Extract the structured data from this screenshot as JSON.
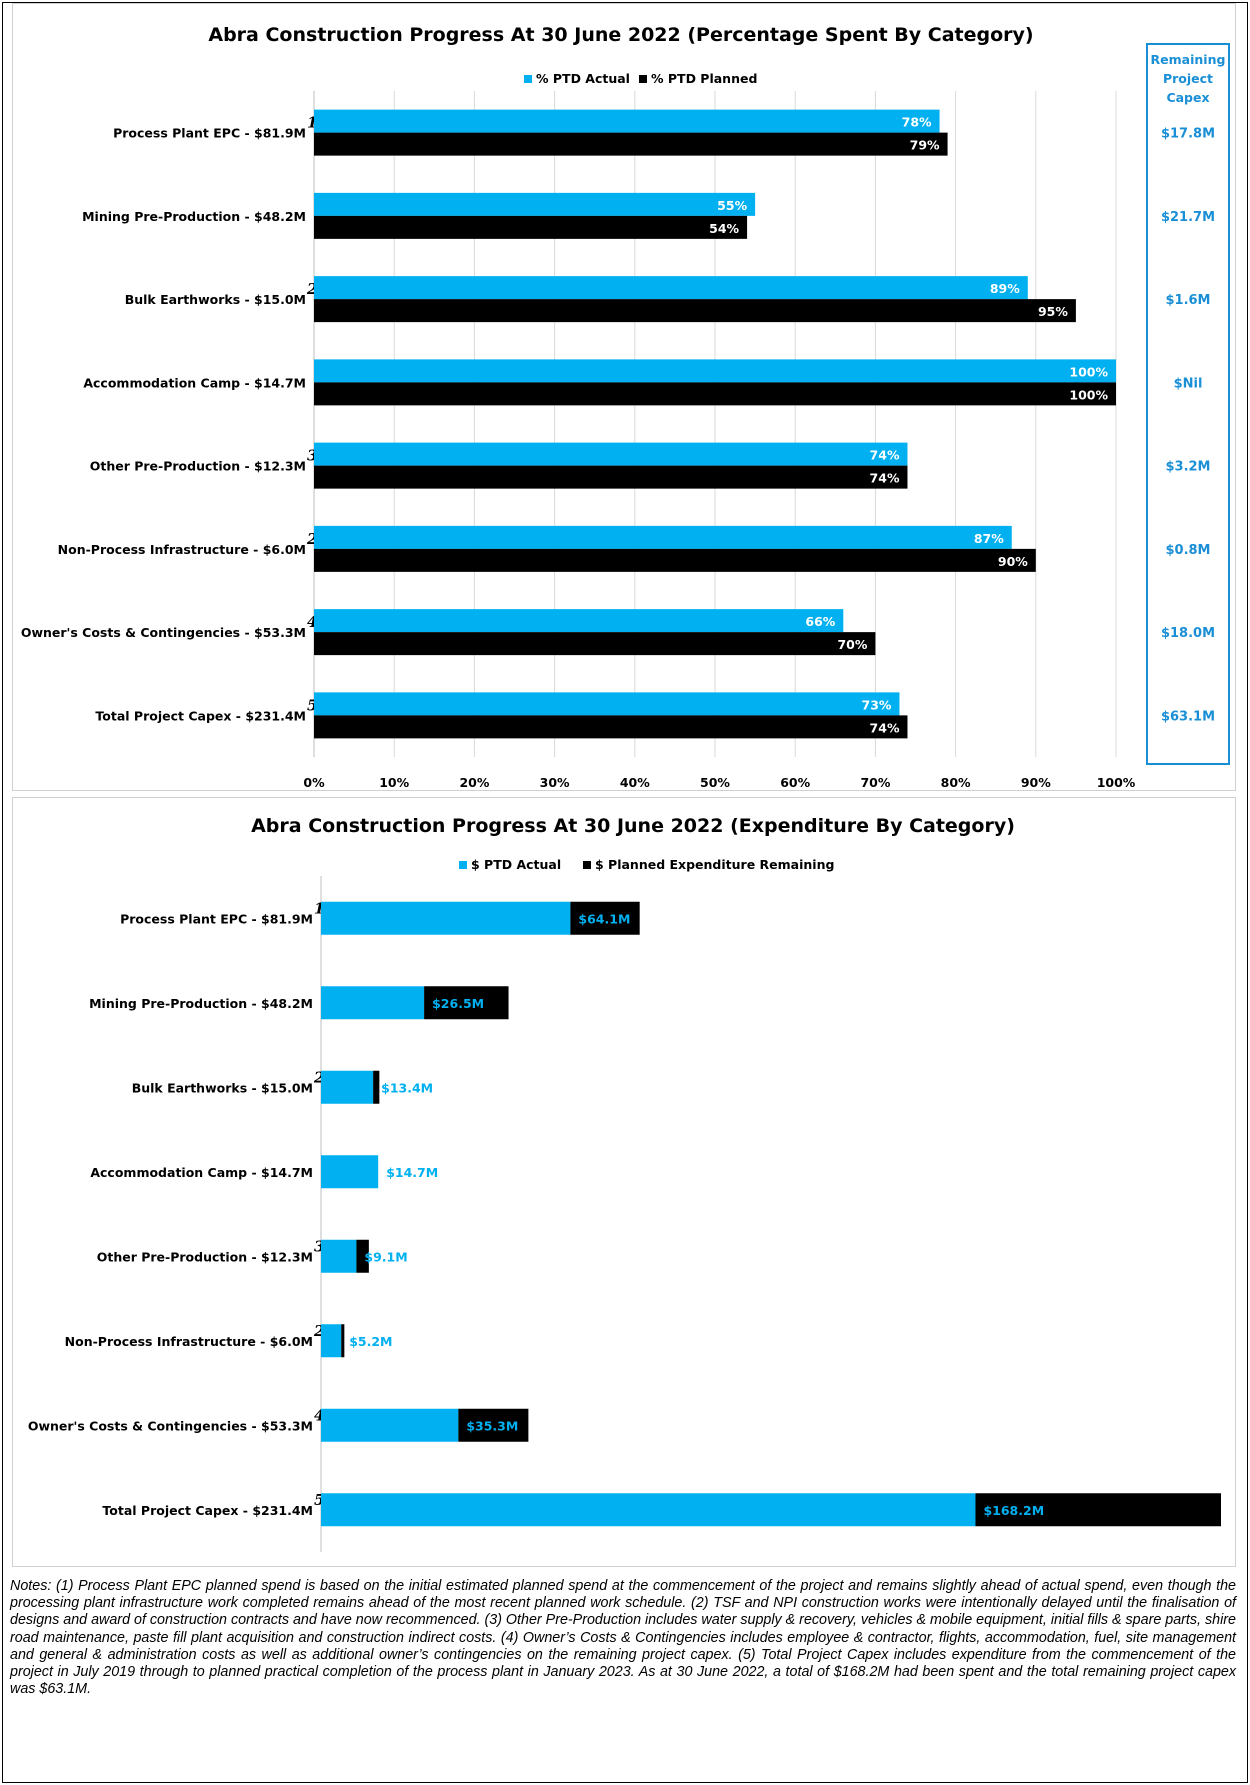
{
  "colors": {
    "actual": "#00b0f0",
    "planned": "#000000",
    "remaining_text": "#1a8fd6"
  },
  "chart_data": [
    {
      "type": "bar",
      "orientation": "horizontal",
      "title": "Abra Construction Progress At 30 June 2022 (Percentage Spent By Category)",
      "categories": [
        "Process Plant EPC  -  $81.9M",
        "Mining Pre-Production  -  $48.2M",
        "Bulk Earthworks  -  $15.0M",
        "Accommodation Camp  -  $14.7M",
        "Other Pre-Production  -  $12.3M",
        "Non-Process Infrastructure  -  $6.0M",
        "Owner's Costs & Contingencies  -  $53.3M",
        "Total Project Capex  -  $231.4M"
      ],
      "footnotes": [
        "1",
        "",
        "2",
        "",
        "3",
        "2",
        "4",
        "5"
      ],
      "series": [
        {
          "name": "% PTD Actual",
          "values": [
            78,
            55,
            89,
            100,
            74,
            87,
            66,
            73
          ],
          "labels": [
            "78%",
            "55%",
            "89%",
            "100%",
            "74%",
            "87%",
            "66%",
            "73%"
          ]
        },
        {
          "name": "% PTD Planned",
          "values": [
            79,
            54,
            95,
            100,
            74,
            90,
            70,
            74
          ],
          "labels": [
            "79%",
            "54%",
            "95%",
            "100%",
            "74%",
            "90%",
            "70%",
            "74%"
          ]
        }
      ],
      "xlim": [
        0,
        100
      ],
      "x_ticks": [
        "0%",
        "10%",
        "20%",
        "30%",
        "40%",
        "50%",
        "60%",
        "70%",
        "80%",
        "90%",
        "100%"
      ],
      "grid": true,
      "legend": "top-center",
      "remaining_header": [
        "Remaining",
        "Project",
        "Capex"
      ],
      "remaining": [
        "$17.8M",
        "$21.7M",
        "$1.6M",
        "$Nil",
        "$3.2M",
        "$0.8M",
        "$18.0M",
        "$63.1M"
      ]
    },
    {
      "type": "bar",
      "orientation": "horizontal",
      "stacked": true,
      "title": "Abra Construction Progress At 30 June 2022 (Expenditure By Category)",
      "categories": [
        "Process Plant EPC  -  $81.9M",
        "Mining Pre-Production  -  $48.2M",
        "Bulk Earthworks  -  $15.0M",
        "Accommodation Camp  -  $14.7M",
        "Other Pre-Production  -  $12.3M",
        "Non-Process Infrastructure  -  $6.0M",
        "Owner's Costs & Contingencies  -  $53.3M",
        "Total Project Capex  -  $231.4M"
      ],
      "footnotes": [
        "1",
        "",
        "2",
        "",
        "3",
        "2",
        "4",
        "5"
      ],
      "series": [
        {
          "name": "$ PTD Actual",
          "values": [
            64.1,
            26.5,
            13.4,
            14.7,
            9.1,
            5.2,
            35.3,
            168.2
          ]
        },
        {
          "name": "$ Planned Expenditure Remaining",
          "values": [
            17.8,
            21.7,
            1.6,
            0,
            3.2,
            0.8,
            18.0,
            63.1
          ]
        }
      ],
      "labels": [
        "$64.1M",
        "$26.5M",
        "$13.4M",
        "$14.7M",
        "$9.1M",
        "$5.2M",
        "$35.3M",
        "$168.2M"
      ],
      "grid": false,
      "legend": "top-center"
    }
  ],
  "notes": "Notes: (1) Process Plant EPC planned spend is based on the initial estimated planned spend at the commencement of the project and remains slightly ahead of actual spend, even though the processing plant infrastructure work completed remains ahead of the most recent planned work schedule.  (2) TSF and NPI construction works were intentionally delayed until the finalisation of designs and award of construction contracts and have now recommenced.  (3) Other Pre-Production includes water supply & recovery, vehicles & mobile equipment, initial fills & spare parts, shire road maintenance, paste fill plant acquisition and construction indirect costs.  (4) Owner’s Costs & Contingencies includes employee & contractor, flights, accommodation, fuel, site management and general & administration costs as well as additional owner’s contingencies on the remaining project capex.  (5) Total Project Capex includes expenditure from the commencement of the project in July 2019 through to planned practical completion of the process plant in January 2023.  As at 30 June 2022, a total of $168.2M had been spent and the total remaining project capex was $63.1M."
}
